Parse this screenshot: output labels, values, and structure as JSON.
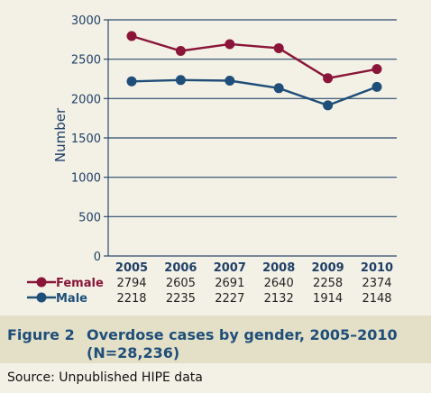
{
  "chart_data": {
    "type": "line",
    "categories": [
      "2005",
      "2006",
      "2007",
      "2008",
      "2009",
      "2010"
    ],
    "series": [
      {
        "name": "Female",
        "values": [
          2794,
          2605,
          2691,
          2640,
          2258,
          2374
        ],
        "color": "#8a1538"
      },
      {
        "name": "Male",
        "values": [
          2218,
          2235,
          2227,
          2132,
          1914,
          2148
        ],
        "color": "#1f4e79"
      }
    ],
    "ylabel": "Number",
    "ylim": [
      0,
      3000
    ],
    "yticks": [
      0,
      500,
      1000,
      1500,
      2000,
      2500,
      3000
    ],
    "grid": true,
    "legend_placement": "bottom-left"
  },
  "caption": {
    "label": "Figure 2",
    "title": "Overdose cases by gender, 2005–2010 (N=28,236)"
  },
  "source": "Source: Unpublished HIPE data"
}
